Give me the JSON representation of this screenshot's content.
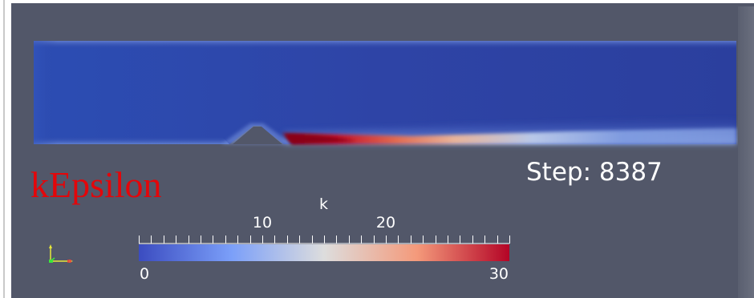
{
  "render": {
    "title": "kEpsilon",
    "step_label": "Step:",
    "step_value": "8387"
  },
  "colorbar": {
    "title": "k",
    "range": [
      0,
      30
    ],
    "tick_labels": [
      {
        "value": 0,
        "label": "0"
      },
      {
        "value": 10,
        "label": "10"
      },
      {
        "value": 20,
        "label": "20"
      },
      {
        "value": 30,
        "label": "30"
      }
    ],
    "minor_tick_count": 31,
    "colormap": "Cool to Warm",
    "colors": {
      "low": "#3b4cc0",
      "mid": "#dddddd",
      "high": "#b40426"
    }
  },
  "axes": {
    "icon": "orientation-axes-icon",
    "colors": {
      "x": "#e83a3a",
      "y": "#e8e83a",
      "z": "#3ae83a"
    }
  },
  "colors": {
    "background": "#525769",
    "domain_base": "#2d48a8",
    "title_red": "#e3060a",
    "text_white": "#ffffff"
  }
}
